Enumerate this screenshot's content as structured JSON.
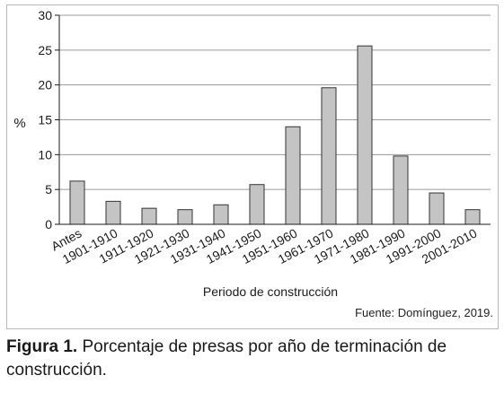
{
  "chart_data": {
    "type": "bar",
    "categories": [
      "Antes",
      "1901-1910",
      "1911-1920",
      "1921-1930",
      "1931-1940",
      "1941-1950",
      "1951-1960",
      "1961-1970",
      "1971-1980",
      "1981-1990",
      "1991-2000",
      "2001-2010"
    ],
    "values": [
      6.2,
      3.3,
      2.3,
      2.1,
      2.8,
      5.7,
      14.0,
      19.6,
      25.6,
      9.8,
      4.5,
      2.1
    ],
    "xlabel": "Periodo de construcción",
    "ylabel": "%",
    "ylim": [
      0,
      30
    ],
    "yticks": [
      0,
      5,
      10,
      15,
      20,
      25,
      30
    ],
    "grid": true,
    "bar_color": "#c4c4c4",
    "bar_edge_color": "#333333"
  },
  "source": "Fuente: Domínguez, 2019.",
  "caption": {
    "label": "Figura 1.",
    "text": " Porcentaje de presas por año de terminación de construcción."
  }
}
